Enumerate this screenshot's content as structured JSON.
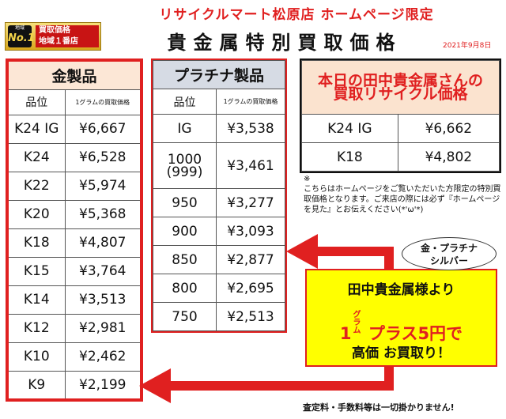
{
  "header": {
    "top_title": "リサイクルマート松原店 ホームページ限定",
    "main_title": "貴金属特別買取価格",
    "date": "2021年9月8日"
  },
  "badge": {
    "small": "地域",
    "no1": "No.1",
    "line1": "買取価格",
    "line2": "地域１番店"
  },
  "gold": {
    "title": "金製品",
    "col_grade": "品位",
    "col_price": "1グラムの買取価格",
    "rows": [
      {
        "grade": "K24 IG",
        "price": "¥6,667"
      },
      {
        "grade": "K24",
        "price": "¥6,528"
      },
      {
        "grade": "K22",
        "price": "¥5,974"
      },
      {
        "grade": "K20",
        "price": "¥5,368"
      },
      {
        "grade": "K18",
        "price": "¥4,807"
      },
      {
        "grade": "K15",
        "price": "¥3,764"
      },
      {
        "grade": "K14",
        "price": "¥3,513"
      },
      {
        "grade": "K12",
        "price": "¥2,981"
      },
      {
        "grade": "K10",
        "price": "¥2,462"
      },
      {
        "grade": "K9",
        "price": "¥2,199"
      }
    ]
  },
  "platinum": {
    "title": "プラチナ製品",
    "col_grade": "品位",
    "col_price": "1グラムの買取価格",
    "rows": [
      {
        "grade": "IG",
        "price": "¥3,538"
      },
      {
        "grade": "1000\n(999)",
        "price": "¥3,461"
      },
      {
        "grade": "950",
        "price": "¥3,277"
      },
      {
        "grade": "900",
        "price": "¥3,093"
      },
      {
        "grade": "850",
        "price": "¥2,877"
      },
      {
        "grade": "800",
        "price": "¥2,695"
      },
      {
        "grade": "750",
        "price": "¥2,513"
      }
    ]
  },
  "tanaka": {
    "title_line1": "本日の田中貴金属さんの",
    "title_line2": "買取リサイクル価格",
    "rows": [
      {
        "grade": "K24 IG",
        "price": "¥6,662"
      },
      {
        "grade": "K18",
        "price": "¥4,802"
      }
    ]
  },
  "note": {
    "mark": "※",
    "text": "こちらはホームページをご覧いただいた方限定の特別買取価格となります。ご来店の際には必ず『ホームページを見た』とお伝えください(*'ω'*)"
  },
  "bubble": {
    "line1": "金・プラチナ",
    "line2": "シルバー"
  },
  "promo": {
    "line1": "田中貴金属様より",
    "one": "1",
    "unit_top": "グラ",
    "unit_bottom": "ム",
    "plus": "プラス5円で",
    "line3": "高価 お買取り！"
  },
  "footer": "査定料・手数料等は一切掛かりません!",
  "colors": {
    "accent_red": "#e02020",
    "promo_yellow": "#ffff00",
    "gold_header": "#fce7d6",
    "platinum_header": "#d6dbe4"
  }
}
